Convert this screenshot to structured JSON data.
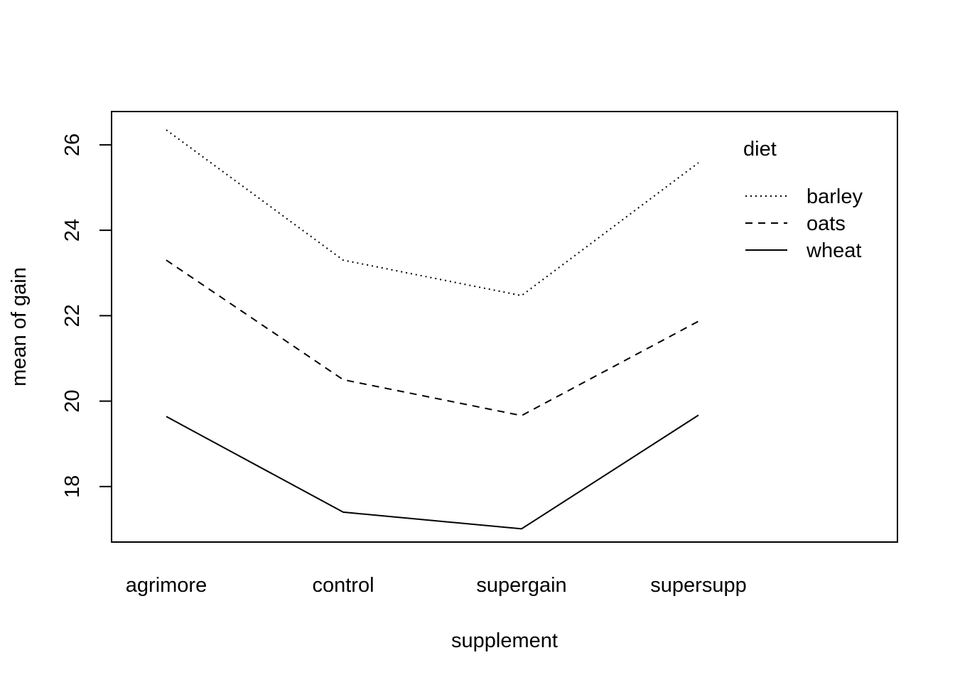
{
  "chart_data": {
    "type": "line",
    "title": "",
    "xlabel": "supplement",
    "ylabel": "mean of  gain",
    "categories": [
      "agrimore",
      "control",
      "supergain",
      "supersupp"
    ],
    "series": [
      {
        "name": "barley",
        "values": [
          26.35,
          23.3,
          22.47,
          25.58
        ],
        "linestyle": "dotted"
      },
      {
        "name": "oats",
        "values": [
          23.3,
          20.5,
          19.66,
          21.87
        ],
        "linestyle": "dashed"
      },
      {
        "name": "wheat",
        "values": [
          19.64,
          17.4,
          17.01,
          19.67
        ],
        "linestyle": "solid"
      }
    ],
    "y_ticks": [
      "18",
      "20",
      "22",
      "24",
      "26"
    ],
    "y_tick_values": [
      18,
      20,
      22,
      24,
      26
    ],
    "ylim": [
      16.7,
      26.78
    ],
    "grid": false,
    "legend": {
      "title": "diet",
      "placement": "top-right",
      "entries": [
        "barley",
        "oats",
        "wheat"
      ]
    },
    "colors": {
      "line": "#000000",
      "background": "#ffffff"
    }
  }
}
